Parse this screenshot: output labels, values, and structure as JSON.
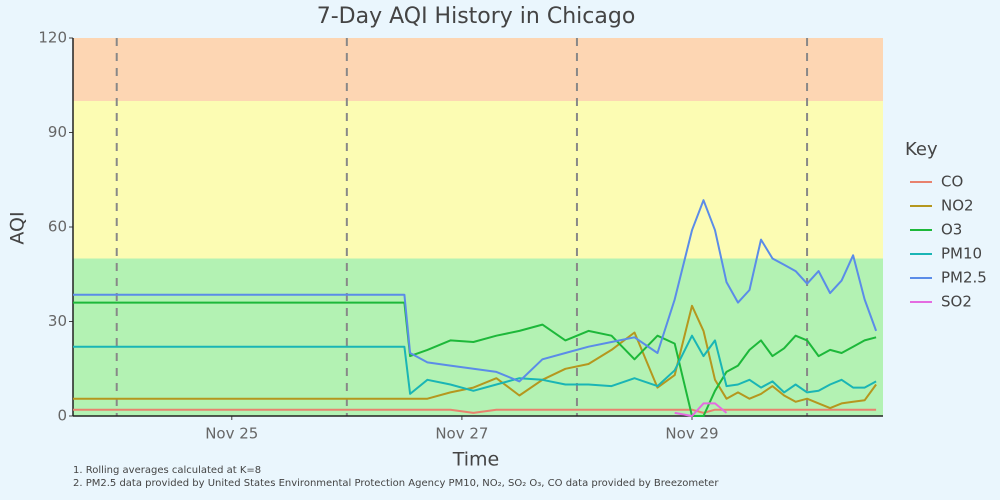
{
  "chart_data": {
    "type": "line",
    "title": "7-Day AQI History in Chicago",
    "x_label": "Time",
    "y_label": "AQI",
    "legend_title": "Key",
    "legend_position": "right",
    "footnotes": [
      "1. Rolling averages calculated at K=8",
      "2. PM2.5 data provided by United States Environmental Protection Agency PM10, NO₂, SO₂ O₃, CO data provided by Breezometer"
    ],
    "xlim": [
      23.62,
      30.66
    ],
    "xticks": [
      {
        "value": 25,
        "label": "Nov 25"
      },
      {
        "value": 27,
        "label": "Nov 27"
      },
      {
        "value": 29,
        "label": "Nov 29"
      }
    ],
    "ylim": [
      0,
      120
    ],
    "yticks": [
      0,
      30,
      60,
      90,
      120
    ],
    "vlines": [
      24,
      26,
      28,
      30
    ],
    "bands": [
      {
        "from": 0,
        "to": 50,
        "color": "#b3f2b3"
      },
      {
        "from": 50,
        "to": 100,
        "color": "#fcfcb3"
      },
      {
        "from": 100,
        "to": 120,
        "color": "#fdd6b3"
      }
    ],
    "x": [
      23.62,
      26.5,
      26.55,
      26.7,
      26.9,
      27.1,
      27.3,
      27.5,
      27.7,
      27.9,
      28.1,
      28.3,
      28.5,
      28.7,
      28.85,
      29.0,
      29.1,
      29.2,
      29.3,
      29.4,
      29.5,
      29.6,
      29.7,
      29.8,
      29.9,
      30.0,
      30.1,
      30.2,
      30.3,
      30.4,
      30.5,
      30.6
    ],
    "series": [
      {
        "name": "CO",
        "color": "#e8826e",
        "values": [
          2,
          2,
          2,
          2,
          2,
          1,
          2,
          2,
          2,
          2,
          2,
          2,
          2,
          2,
          2,
          2,
          1,
          2,
          2,
          2,
          2,
          2,
          2,
          2,
          2,
          2,
          2,
          2,
          2,
          2,
          2,
          2
        ]
      },
      {
        "name": "NO2",
        "color": "#b5971e",
        "values": [
          5.5,
          5.5,
          5.5,
          5.5,
          7.5,
          9,
          12,
          6.5,
          11.5,
          15,
          16.5,
          21,
          26.5,
          9,
          13,
          35,
          27,
          11.5,
          5.5,
          7.5,
          5.5,
          7,
          9.5,
          6.5,
          4.5,
          5.5,
          4,
          2.5,
          4,
          4.5,
          5,
          10
        ]
      },
      {
        "name": "O3",
        "color": "#1db83a",
        "values": [
          36,
          36,
          19,
          21,
          24,
          23.5,
          25.5,
          27,
          29,
          24,
          27,
          25.5,
          18,
          25.5,
          23,
          0,
          0,
          8,
          14,
          16,
          21,
          24,
          19,
          21.5,
          25.5,
          24,
          19,
          21,
          20,
          22,
          24,
          25
        ]
      },
      {
        "name": "PM10",
        "color": "#1ab5b5",
        "values": [
          22,
          22,
          7,
          11.5,
          10,
          8,
          10,
          12,
          11.5,
          10,
          10,
          9.5,
          12,
          9.5,
          14.5,
          25.5,
          19,
          24,
          9.5,
          10,
          11.5,
          9,
          11,
          7.5,
          10,
          7.5,
          8,
          10,
          11.5,
          9,
          9,
          11
        ]
      },
      {
        "name": "PM2.5",
        "color": "#5b8ce8",
        "values": [
          38.5,
          38.5,
          20,
          17,
          16,
          15,
          14,
          11,
          18,
          20,
          22,
          23.5,
          25,
          20,
          37,
          59,
          68.5,
          59,
          42.5,
          36,
          40,
          56,
          50,
          48,
          46,
          42,
          46,
          39,
          43,
          51,
          37,
          27
        ]
      },
      {
        "name": "SO2",
        "color": "#e46be0",
        "values": [
          null,
          null,
          null,
          null,
          null,
          null,
          null,
          null,
          null,
          null,
          null,
          null,
          null,
          null,
          1,
          0,
          4,
          4,
          1,
          null,
          null,
          null,
          null,
          null,
          null,
          null,
          null,
          null,
          null,
          null,
          null,
          null
        ]
      }
    ]
  }
}
